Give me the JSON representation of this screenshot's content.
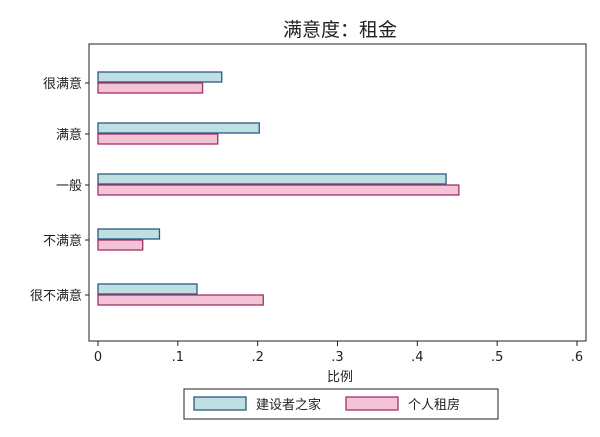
{
  "chart_data": {
    "type": "bar",
    "orientation": "horizontal",
    "title": "满意度：租金",
    "xlabel": "比例",
    "ylabel": "",
    "xlim": [
      0,
      0.6
    ],
    "xticks": [
      0,
      0.1,
      0.2,
      0.3,
      0.4,
      0.5,
      0.6
    ],
    "xtick_labels": [
      "0",
      ".1",
      ".2",
      ".3",
      ".4",
      ".5",
      ".6"
    ],
    "categories": [
      "很满意",
      "满意",
      "一般",
      "不满意",
      "很不满意"
    ],
    "series": [
      {
        "name": "建设者之家",
        "values": [
          0.155,
          0.202,
          0.436,
          0.077,
          0.124
        ],
        "fill": "#bfe0e2",
        "stroke": "#2a5a80"
      },
      {
        "name": "个人租房",
        "values": [
          0.131,
          0.15,
          0.452,
          0.056,
          0.207
        ],
        "fill": "#f4c3d6",
        "stroke": "#a0306a"
      }
    ],
    "grid": false,
    "legend_position": "bottom"
  }
}
